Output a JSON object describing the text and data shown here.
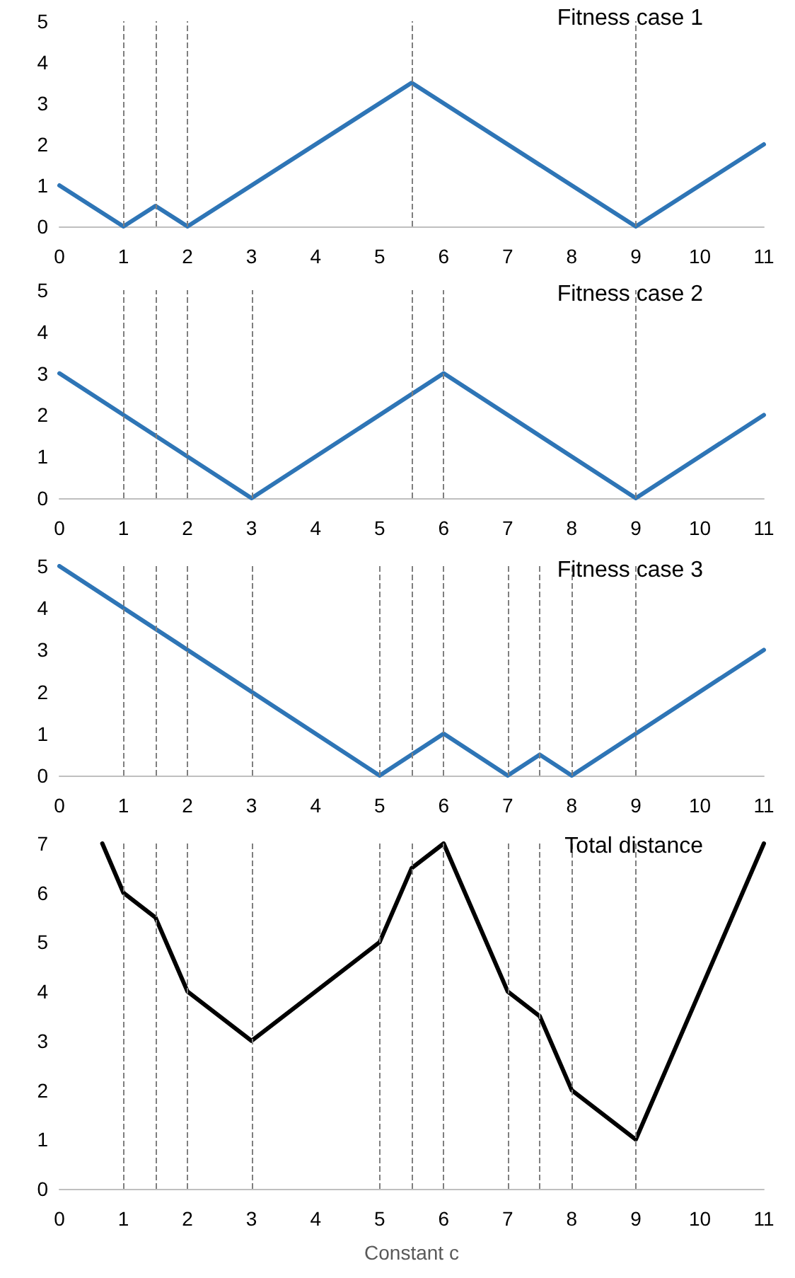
{
  "chart_data": [
    {
      "type": "line",
      "title": "Fitness case 1",
      "x": [
        0,
        1,
        1.5,
        2,
        5.5,
        9,
        11
      ],
      "values": [
        1,
        0,
        0.5,
        0,
        3.5,
        0,
        2
      ],
      "color": "#2e75b6",
      "xlim": [
        0,
        11
      ],
      "xticks": [
        0,
        1,
        2,
        3,
        4,
        5,
        6,
        7,
        8,
        9,
        10,
        11
      ],
      "ylim": [
        0,
        5
      ],
      "yticks": [
        0,
        1,
        2,
        3,
        4,
        5
      ],
      "grid": false,
      "marker": "none",
      "line_style": "solid",
      "ref_lines": [
        {
          "axis": "x",
          "value": 1
        },
        {
          "axis": "x",
          "value": 1.5
        },
        {
          "axis": "x",
          "value": 2
        },
        {
          "axis": "x",
          "value": 5.5
        },
        {
          "axis": "x",
          "value": 9
        }
      ]
    },
    {
      "type": "line",
      "title": "Fitness case 2",
      "x": [
        0,
        3,
        6,
        9,
        11
      ],
      "values": [
        3,
        0,
        3,
        0,
        2
      ],
      "color": "#2e75b6",
      "xlim": [
        0,
        11
      ],
      "xticks": [
        0,
        1,
        2,
        3,
        4,
        5,
        6,
        7,
        8,
        9,
        10,
        11
      ],
      "ylim": [
        0,
        5
      ],
      "yticks": [
        0,
        1,
        2,
        3,
        4,
        5
      ],
      "grid": false,
      "marker": "none",
      "line_style": "solid",
      "ref_lines": [
        {
          "axis": "x",
          "value": 1
        },
        {
          "axis": "x",
          "value": 1.5
        },
        {
          "axis": "x",
          "value": 2
        },
        {
          "axis": "x",
          "value": 3
        },
        {
          "axis": "x",
          "value": 5.5
        },
        {
          "axis": "x",
          "value": 6
        },
        {
          "axis": "x",
          "value": 9
        }
      ]
    },
    {
      "type": "line",
      "title": "Fitness case 3",
      "x": [
        0,
        5,
        6,
        7,
        7.5,
        8,
        11
      ],
      "values": [
        5,
        0,
        1,
        0,
        0.5,
        0,
        3
      ],
      "color": "#2e75b6",
      "xlim": [
        0,
        11
      ],
      "xticks": [
        0,
        1,
        2,
        3,
        4,
        5,
        6,
        7,
        8,
        9,
        10,
        11
      ],
      "ylim": [
        0,
        5
      ],
      "yticks": [
        0,
        1,
        2,
        3,
        4,
        5
      ],
      "grid": false,
      "marker": "none",
      "line_style": "solid",
      "ref_lines": [
        {
          "axis": "x",
          "value": 1
        },
        {
          "axis": "x",
          "value": 1.5
        },
        {
          "axis": "x",
          "value": 2
        },
        {
          "axis": "x",
          "value": 3
        },
        {
          "axis": "x",
          "value": 5
        },
        {
          "axis": "x",
          "value": 5.5
        },
        {
          "axis": "x",
          "value": 6
        },
        {
          "axis": "x",
          "value": 7
        },
        {
          "axis": "x",
          "value": 7.5
        },
        {
          "axis": "x",
          "value": 8
        },
        {
          "axis": "x",
          "value": 9
        }
      ]
    },
    {
      "type": "line",
      "title": "Total distance",
      "xlabel": "Constant c",
      "x": [
        0.67,
        1,
        1.5,
        2,
        3,
        5,
        5.5,
        6,
        7,
        7.5,
        8,
        9,
        11
      ],
      "values": [
        7,
        6,
        5.5,
        4,
        3,
        5,
        6.5,
        7,
        4,
        3.5,
        2,
        1,
        7
      ],
      "color": "#000000",
      "xlim": [
        0,
        11
      ],
      "xticks": [
        0,
        1,
        2,
        3,
        4,
        5,
        6,
        7,
        8,
        9,
        10,
        11
      ],
      "ylim": [
        0,
        7
      ],
      "yticks": [
        0,
        1,
        2,
        3,
        4,
        5,
        6,
        7
      ],
      "grid": false,
      "marker": "none",
      "line_style": "solid",
      "ref_lines": [
        {
          "axis": "x",
          "value": 1
        },
        {
          "axis": "x",
          "value": 1.5
        },
        {
          "axis": "x",
          "value": 2
        },
        {
          "axis": "x",
          "value": 3
        },
        {
          "axis": "x",
          "value": 5
        },
        {
          "axis": "x",
          "value": 5.5
        },
        {
          "axis": "x",
          "value": 6
        },
        {
          "axis": "x",
          "value": 7
        },
        {
          "axis": "x",
          "value": 7.5
        },
        {
          "axis": "x",
          "value": 8
        },
        {
          "axis": "x",
          "value": 9
        }
      ]
    }
  ]
}
